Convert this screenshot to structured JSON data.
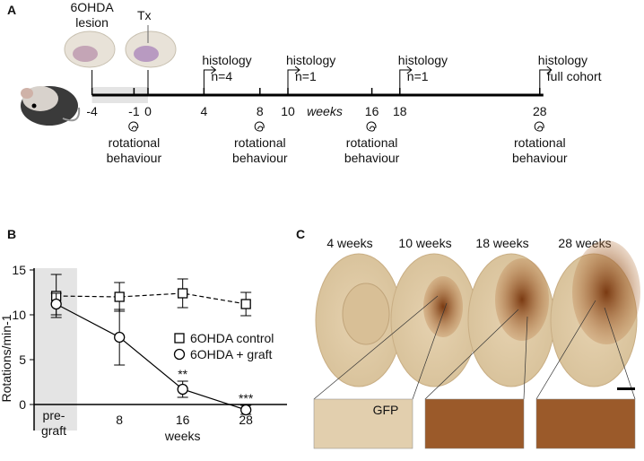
{
  "timeline": {
    "panel": "A",
    "ticks": [
      -4,
      -1,
      0,
      4,
      8,
      10,
      16,
      18,
      28
    ],
    "unit": "weeks",
    "events": [
      {
        "week": -4,
        "label": "6OHDA lesion"
      },
      {
        "week": 0,
        "label": "Tx"
      }
    ],
    "histology": [
      {
        "week": 4,
        "label": "histology",
        "note": "n=4"
      },
      {
        "week": 10,
        "label": "histology",
        "note": "n=1"
      },
      {
        "week": 18,
        "label": "histology",
        "note": "n=1"
      },
      {
        "week": 28,
        "label": "histology",
        "note": "full cohort"
      }
    ],
    "behaviour": [
      {
        "week": -1,
        "label": "rotational behaviour"
      },
      {
        "week": 8,
        "label": "rotational behaviour"
      },
      {
        "week": 16,
        "label": "rotational behaviour"
      },
      {
        "week": 28,
        "label": "rotational behaviour"
      }
    ]
  },
  "chart_data": {
    "type": "line",
    "panel": "B",
    "y_label": "Rotations/min-1",
    "x_label": "weeks",
    "categories": [
      "pre-graft",
      "8",
      "16",
      "28"
    ],
    "ylim": [
      -2.9,
      15.2
    ],
    "yticks": [
      0,
      5,
      10,
      15
    ],
    "series": [
      {
        "name": "6OHDA control",
        "color": "#000000",
        "marker": "square",
        "dashed": true,
        "values": [
          12.1,
          12.0,
          12.4,
          11.2
        ],
        "errors": [
          2.4,
          1.6,
          1.6,
          1.3
        ]
      },
      {
        "name": "6OHDA + graft",
        "color": "#000000",
        "marker": "circle",
        "dashed": false,
        "values": [
          11.2,
          7.5,
          1.7,
          -0.6
        ],
        "errors": [
          1.2,
          3.1,
          0.9,
          0.5
        ],
        "significance": [
          null,
          null,
          "**",
          "***"
        ]
      }
    ]
  },
  "histology_panel": {
    "panel": "C",
    "titles": [
      "4 weeks",
      "10 weeks",
      "18 weeks",
      "28 weeks"
    ],
    "stain": "GFP"
  }
}
